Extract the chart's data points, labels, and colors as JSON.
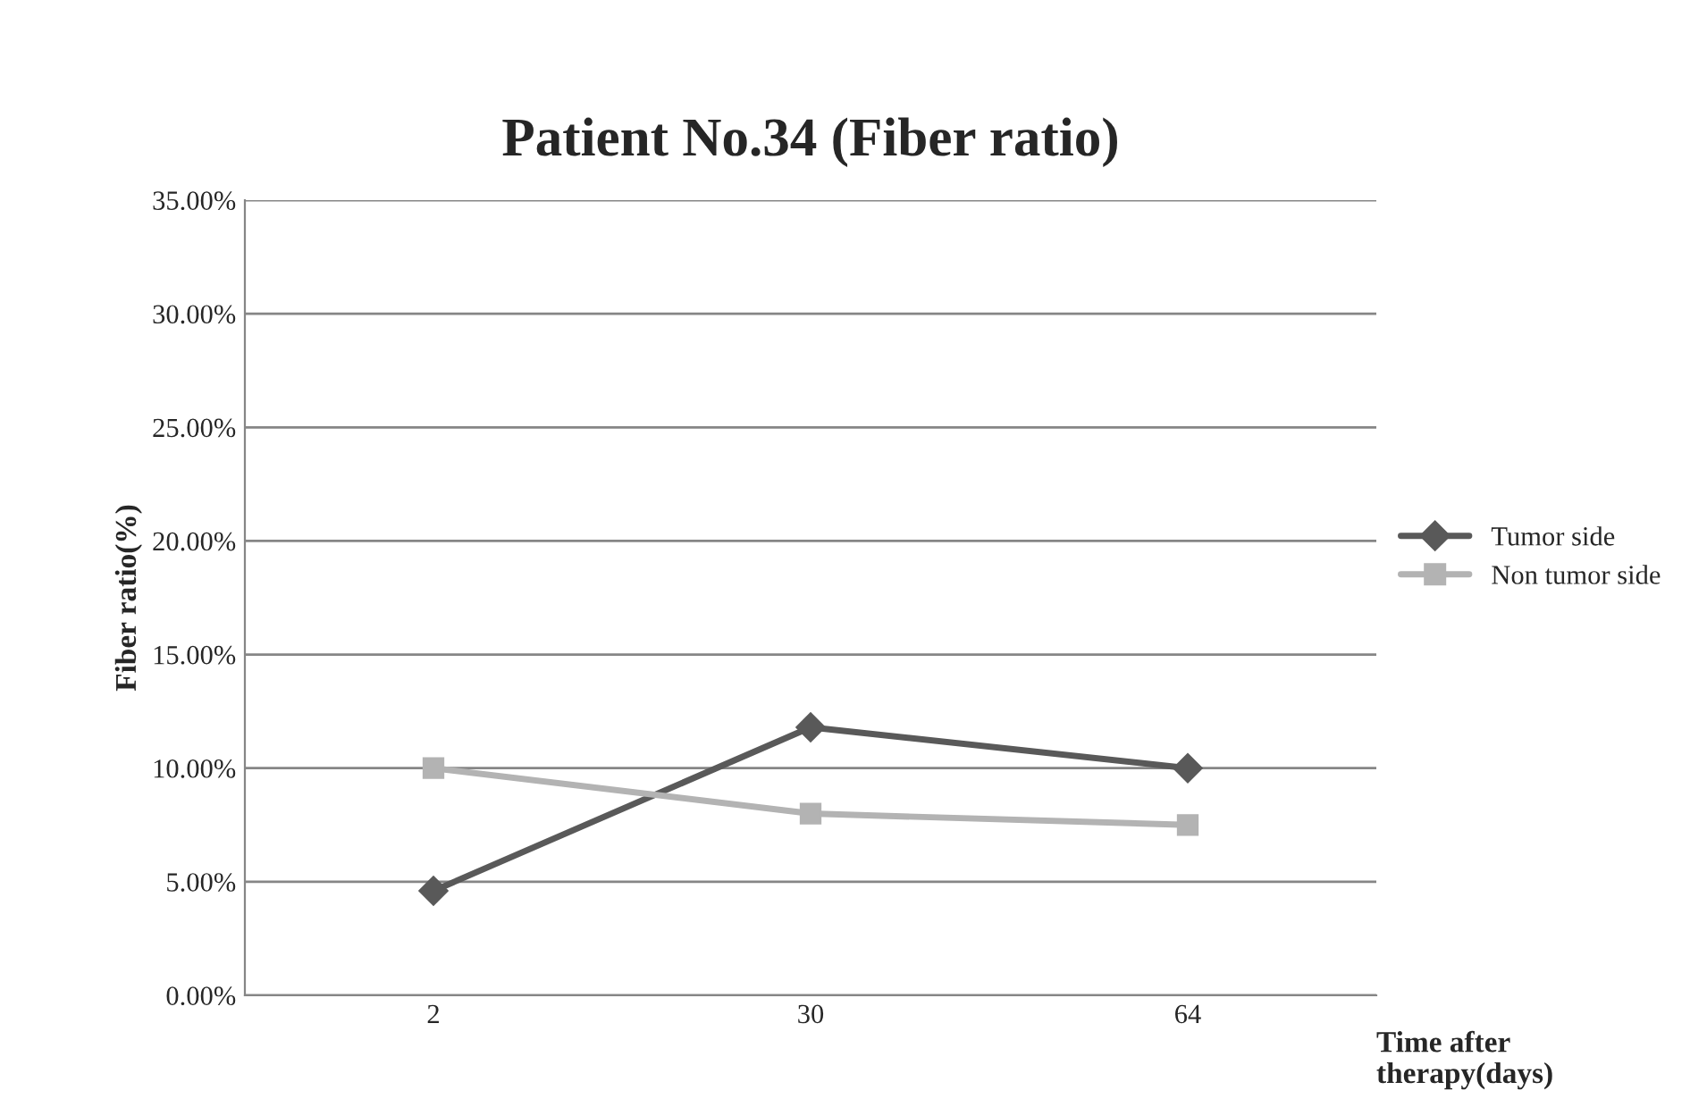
{
  "chart_data": {
    "type": "line",
    "title": "Patient No.34 (Fiber ratio)",
    "xlabel": "Time after\ntherapy(days)",
    "ylabel": "Fiber ratio(%)",
    "categories": [
      "2",
      "30",
      "64"
    ],
    "series": [
      {
        "name": "Tumor side",
        "color": "#595959",
        "marker": "diamond",
        "values": [
          4.6,
          11.8,
          10.0
        ]
      },
      {
        "name": "Non tumor side",
        "color": "#b3b3b3",
        "marker": "square",
        "values": [
          10.0,
          8.0,
          7.5
        ]
      }
    ],
    "ylim": [
      0,
      35
    ],
    "yticks": [
      {
        "value": 0,
        "label": "0.00%"
      },
      {
        "value": 5,
        "label": "5.00%"
      },
      {
        "value": 10,
        "label": "10.00%"
      },
      {
        "value": 15,
        "label": "15.00%"
      },
      {
        "value": 20,
        "label": "20.00%"
      },
      {
        "value": 25,
        "label": "25.00%"
      },
      {
        "value": 30,
        "label": "30.00%"
      },
      {
        "value": 35,
        "label": "35.00%"
      }
    ],
    "grid": "y",
    "legend": "right",
    "line_style": "solid"
  }
}
